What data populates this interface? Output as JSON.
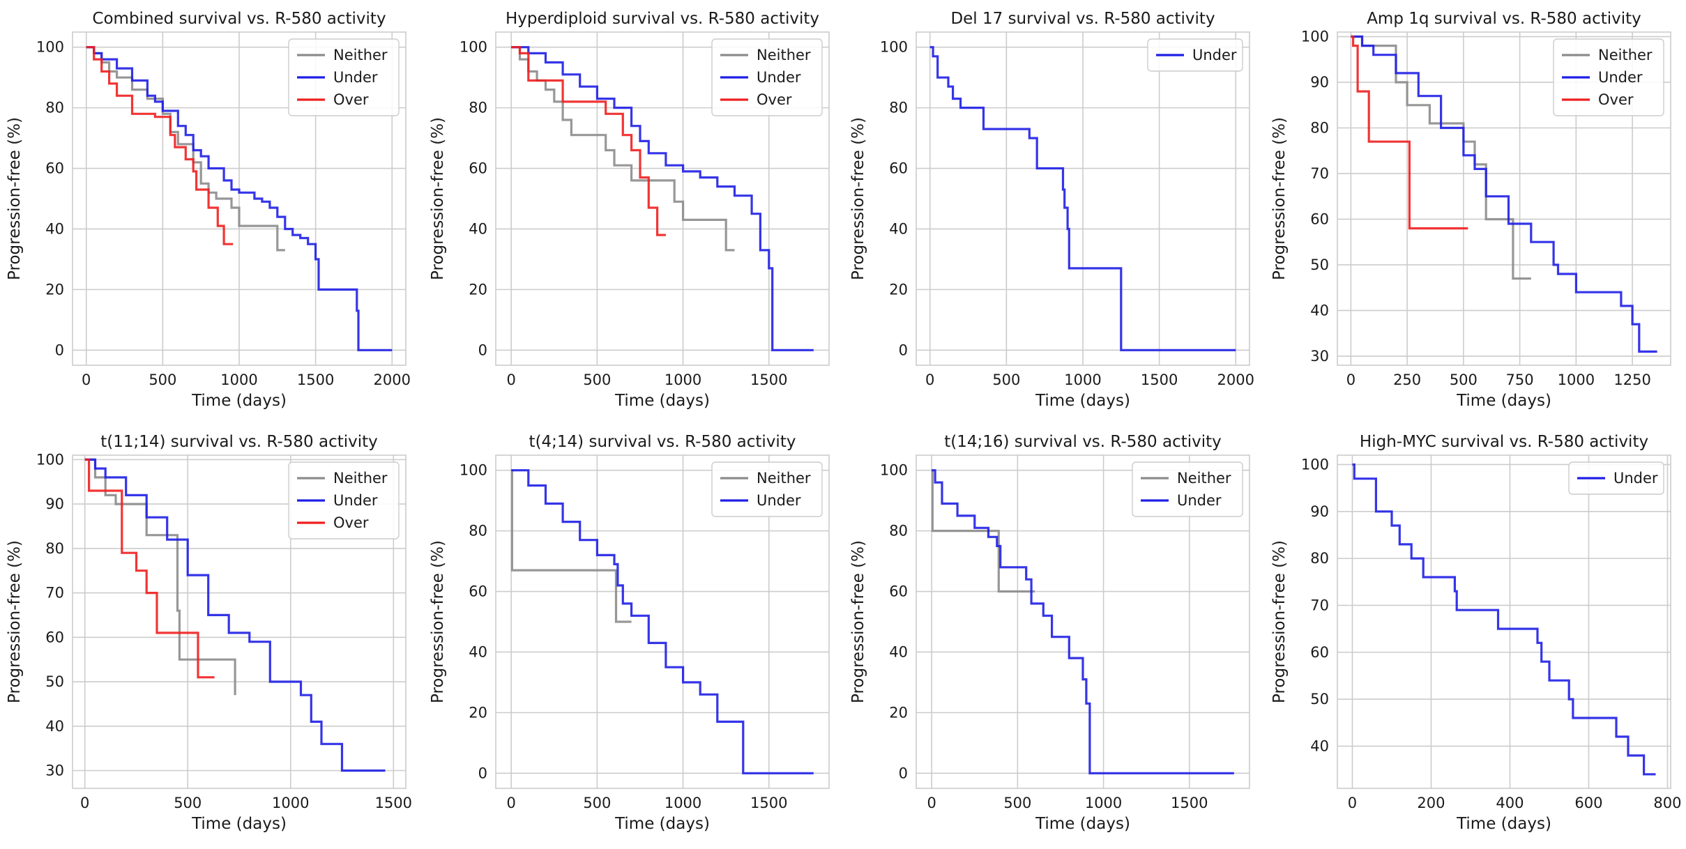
{
  "figure": {
    "xlabel": "Time (days)",
    "ylabel": "Progression-free (%)",
    "colors": {
      "Neither": "#8c8c8c",
      "Under": "#1f1fe6",
      "Over": "#ef1f1f"
    }
  },
  "chart_data": [
    {
      "type": "line",
      "title": "Combined survival vs. R-580 activity",
      "xlabel": "Time (days)",
      "ylabel": "Progression-free (%)",
      "xlim": [
        -90,
        2090
      ],
      "ylim": [
        -5,
        105
      ],
      "xticks": [
        0,
        500,
        1000,
        1500,
        2000
      ],
      "xticklabels": [
        "0",
        "500",
        "1000",
        "1500",
        "2000"
      ],
      "yticks": [
        0,
        20,
        40,
        60,
        80,
        100
      ],
      "yticklabels": [
        "0",
        "20",
        "40",
        "60",
        "80",
        "100"
      ],
      "legend": [
        "Neither",
        "Under",
        "Over"
      ],
      "series": [
        {
          "name": "Neither",
          "x": [
            0,
            50,
            100,
            150,
            200,
            300,
            400,
            500,
            550,
            600,
            700,
            750,
            800,
            850,
            900,
            950,
            1000,
            1100,
            1200,
            1250,
            1300
          ],
          "y": [
            100,
            98,
            95,
            92,
            90,
            86,
            83,
            78,
            72,
            68,
            62,
            55,
            52,
            50,
            50,
            47,
            41,
            41,
            41,
            33,
            33
          ]
        },
        {
          "name": "Under",
          "x": [
            0,
            50,
            100,
            200,
            300,
            400,
            450,
            500,
            600,
            650,
            700,
            750,
            800,
            900,
            950,
            1000,
            1100,
            1150,
            1200,
            1250,
            1300,
            1350,
            1400,
            1450,
            1500,
            1520,
            1760,
            1770,
            1780,
            2000
          ],
          "y": [
            100,
            98,
            96,
            93,
            89,
            84,
            82,
            79,
            74,
            71,
            66,
            64,
            60,
            56,
            53,
            52,
            50,
            49,
            47,
            44,
            40,
            38,
            37,
            35,
            30,
            20,
            20,
            13,
            0,
            0
          ]
        },
        {
          "name": "Over",
          "x": [
            0,
            50,
            100,
            150,
            200,
            300,
            350,
            400,
            450,
            500,
            550,
            580,
            650,
            700,
            720,
            800,
            860,
            900,
            960
          ],
          "y": [
            100,
            96,
            92,
            88,
            84,
            78,
            78,
            78,
            77,
            77,
            71,
            67,
            63,
            59,
            53,
            47,
            41,
            35,
            35
          ]
        }
      ]
    },
    {
      "type": "line",
      "title": "Hyperdiploid survival vs. R-580 activity",
      "xlabel": "Time (days)",
      "ylabel": "Progression-free (%)",
      "xlim": [
        -90,
        1850
      ],
      "ylim": [
        -5,
        105
      ],
      "xticks": [
        0,
        500,
        1000,
        1500
      ],
      "xticklabels": [
        "0",
        "500",
        "1000",
        "1500"
      ],
      "yticks": [
        0,
        20,
        40,
        60,
        80,
        100
      ],
      "yticklabels": [
        "0",
        "20",
        "40",
        "60",
        "80",
        "100"
      ],
      "legend": [
        "Neither",
        "Under",
        "Over"
      ],
      "series": [
        {
          "name": "Neither",
          "x": [
            0,
            50,
            100,
            150,
            200,
            250,
            300,
            350,
            400,
            550,
            600,
            700,
            800,
            950,
            1000,
            1250,
            1300
          ],
          "y": [
            100,
            96,
            92,
            89,
            86,
            82,
            76,
            71,
            71,
            66,
            61,
            56,
            56,
            49,
            43,
            33,
            33
          ]
        },
        {
          "name": "Under",
          "x": [
            0,
            100,
            200,
            300,
            400,
            500,
            600,
            700,
            750,
            800,
            900,
            1000,
            1100,
            1200,
            1300,
            1400,
            1450,
            1500,
            1520,
            1760
          ],
          "y": [
            100,
            98,
            95,
            91,
            87,
            83,
            80,
            74,
            69,
            65,
            61,
            59,
            57,
            54,
            51,
            45,
            33,
            27,
            0,
            0
          ]
        },
        {
          "name": "Over",
          "x": [
            0,
            50,
            100,
            200,
            300,
            400,
            500,
            550,
            650,
            700,
            750,
            800,
            850,
            900
          ],
          "y": [
            100,
            98,
            89,
            89,
            82,
            82,
            82,
            78,
            71,
            66,
            57,
            47,
            38,
            38
          ]
        }
      ]
    },
    {
      "type": "line",
      "title": "Del 17 survival vs. R-580 activity",
      "xlabel": "Time (days)",
      "ylabel": "Progression-free (%)",
      "xlim": [
        -90,
        2090
      ],
      "ylim": [
        -5,
        105
      ],
      "xticks": [
        0,
        500,
        1000,
        1500,
        2000
      ],
      "xticklabels": [
        "0",
        "500",
        "1000",
        "1500",
        "2000"
      ],
      "yticks": [
        0,
        20,
        40,
        60,
        80,
        100
      ],
      "yticklabels": [
        "0",
        "20",
        "40",
        "60",
        "80",
        "100"
      ],
      "legend": [
        "Under"
      ],
      "series": [
        {
          "name": "Under",
          "x": [
            0,
            20,
            50,
            120,
            150,
            200,
            350,
            650,
            700,
            870,
            880,
            900,
            910,
            1250,
            2000
          ],
          "y": [
            100,
            97,
            90,
            87,
            83,
            80,
            73,
            70,
            60,
            53,
            47,
            40,
            27,
            0,
            0
          ]
        }
      ]
    },
    {
      "type": "line",
      "title": "Amp 1q survival vs. R-580 activity",
      "xlabel": "Time (days)",
      "ylabel": "Progression-free (%)",
      "xlim": [
        -60,
        1420
      ],
      "ylim": [
        28,
        101
      ],
      "xticks": [
        0,
        250,
        500,
        750,
        1000,
        1250
      ],
      "xticklabels": [
        "0",
        "250",
        "500",
        "750",
        "1000",
        "1250"
      ],
      "yticks": [
        30,
        40,
        50,
        60,
        70,
        80,
        90,
        100
      ],
      "yticklabels": [
        "30",
        "40",
        "50",
        "60",
        "70",
        "80",
        "90",
        "100"
      ],
      "legend": [
        "Neither",
        "Under",
        "Over"
      ],
      "series": [
        {
          "name": "Neither",
          "x": [
            0,
            50,
            200,
            250,
            350,
            450,
            500,
            550,
            600,
            700,
            720,
            800
          ],
          "y": [
            100,
            98,
            90,
            85,
            81,
            81,
            77,
            72,
            60,
            60,
            47,
            47
          ]
        },
        {
          "name": "Under",
          "x": [
            0,
            50,
            100,
            200,
            300,
            400,
            500,
            550,
            600,
            700,
            800,
            900,
            920,
            1000,
            1200,
            1250,
            1280,
            1360
          ],
          "y": [
            100,
            98,
            96,
            92,
            87,
            80,
            74,
            71,
            65,
            59,
            55,
            50,
            48,
            44,
            41,
            37,
            31,
            31
          ]
        },
        {
          "name": "Over",
          "x": [
            0,
            10,
            30,
            80,
            260,
            520
          ],
          "y": [
            100,
            98,
            88,
            77,
            58,
            58
          ]
        }
      ]
    },
    {
      "type": "line",
      "title": "t(11;14) survival vs. R-580 activity",
      "xlabel": "Time (days)",
      "ylabel": "Progression-free (%)",
      "xlim": [
        -60,
        1560
      ],
      "ylim": [
        26,
        101
      ],
      "xticks": [
        0,
        500,
        1000,
        1500
      ],
      "xticklabels": [
        "0",
        "500",
        "1000",
        "1500"
      ],
      "yticks": [
        30,
        40,
        50,
        60,
        70,
        80,
        90,
        100
      ],
      "yticklabels": [
        "30",
        "40",
        "50",
        "60",
        "70",
        "80",
        "90",
        "100"
      ],
      "legend": [
        "Neither",
        "Under",
        "Over"
      ],
      "series": [
        {
          "name": "Neither",
          "x": [
            0,
            50,
            100,
            150,
            300,
            450,
            460,
            730
          ],
          "y": [
            100,
            96,
            92,
            90,
            83,
            66,
            55,
            47
          ]
        },
        {
          "name": "Under",
          "x": [
            0,
            50,
            100,
            200,
            300,
            400,
            500,
            600,
            700,
            800,
            900,
            1000,
            1050,
            1100,
            1150,
            1200,
            1250,
            1460
          ],
          "y": [
            100,
            98,
            96,
            92,
            87,
            82,
            74,
            65,
            61,
            59,
            50,
            50,
            47,
            41,
            36,
            36,
            30,
            30
          ]
        },
        {
          "name": "Over",
          "x": [
            0,
            20,
            150,
            180,
            250,
            300,
            350,
            450,
            550,
            630
          ],
          "y": [
            100,
            93,
            93,
            79,
            75,
            70,
            61,
            61,
            51,
            51
          ]
        }
      ]
    },
    {
      "type": "line",
      "title": "t(4;14) survival vs. R-580 activity",
      "xlabel": "Time (days)",
      "ylabel": "Progression-free (%)",
      "xlim": [
        -90,
        1850
      ],
      "ylim": [
        -5,
        105
      ],
      "xticks": [
        0,
        500,
        1000,
        1500
      ],
      "xticklabels": [
        "0",
        "500",
        "1000",
        "1500"
      ],
      "yticks": [
        0,
        20,
        40,
        60,
        80,
        100
      ],
      "yticklabels": [
        "0",
        "20",
        "40",
        "60",
        "80",
        "100"
      ],
      "legend": [
        "Neither",
        "Under"
      ],
      "series": [
        {
          "name": "Neither",
          "x": [
            0,
            5,
            600,
            610,
            700
          ],
          "y": [
            100,
            67,
            67,
            50,
            50
          ]
        },
        {
          "name": "Under",
          "x": [
            0,
            100,
            200,
            300,
            400,
            500,
            600,
            620,
            650,
            700,
            800,
            900,
            1000,
            1100,
            1200,
            1350,
            1760
          ],
          "y": [
            100,
            95,
            89,
            83,
            77,
            72,
            69,
            62,
            56,
            52,
            43,
            35,
            30,
            26,
            17,
            0,
            0
          ]
        }
      ]
    },
    {
      "type": "line",
      "title": "t(14;16) survival vs. R-580 activity",
      "xlabel": "Time (days)",
      "ylabel": "Progression-free (%)",
      "xlim": [
        -90,
        1850
      ],
      "ylim": [
        -5,
        105
      ],
      "xticks": [
        0,
        500,
        1000,
        1500
      ],
      "xticklabels": [
        "0",
        "500",
        "1000",
        "1500"
      ],
      "yticks": [
        0,
        20,
        40,
        60,
        80,
        100
      ],
      "yticklabels": [
        "0",
        "20",
        "40",
        "60",
        "80",
        "100"
      ],
      "legend": [
        "Neither",
        "Under"
      ],
      "series": [
        {
          "name": "Neither",
          "x": [
            0,
            5,
            380,
            390,
            600
          ],
          "y": [
            100,
            80,
            80,
            60,
            60
          ]
        },
        {
          "name": "Under",
          "x": [
            0,
            20,
            60,
            150,
            250,
            330,
            380,
            400,
            550,
            580,
            650,
            700,
            800,
            880,
            900,
            920,
            1760
          ],
          "y": [
            100,
            96,
            89,
            85,
            81,
            78,
            75,
            68,
            64,
            56,
            52,
            45,
            38,
            31,
            23,
            0,
            0
          ]
        }
      ]
    },
    {
      "type": "line",
      "title": "High-MYC survival vs. R-580 activity",
      "xlabel": "Time (days)",
      "ylabel": "Progression-free (%)",
      "xlim": [
        -38,
        808
      ],
      "ylim": [
        31,
        102
      ],
      "xticks": [
        0,
        200,
        400,
        600,
        800
      ],
      "xticklabels": [
        "0",
        "200",
        "400",
        "600",
        "800"
      ],
      "yticks": [
        40,
        50,
        60,
        70,
        80,
        90,
        100
      ],
      "yticklabels": [
        "40",
        "50",
        "60",
        "70",
        "80",
        "90",
        "100"
      ],
      "legend": [
        "Under"
      ],
      "series": [
        {
          "name": "Under",
          "x": [
            0,
            5,
            60,
            100,
            120,
            150,
            180,
            260,
            265,
            370,
            470,
            480,
            500,
            550,
            560,
            670,
            700,
            740,
            770
          ],
          "y": [
            100,
            97,
            90,
            87,
            83,
            80,
            76,
            73,
            69,
            65,
            62,
            58,
            54,
            50,
            46,
            42,
            38,
            34,
            34
          ]
        }
      ]
    }
  ]
}
